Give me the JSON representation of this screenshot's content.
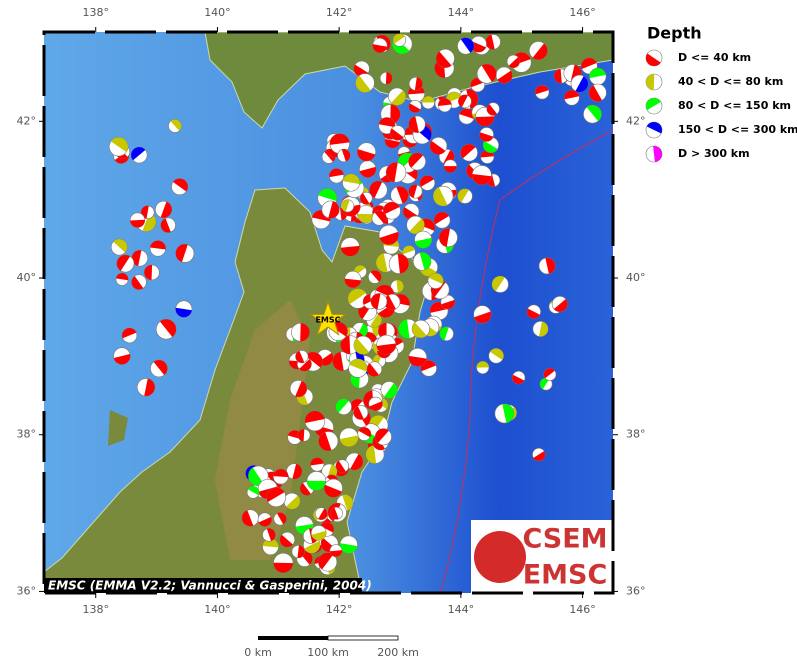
{
  "map": {
    "xlim": [
      137.15,
      146.5
    ],
    "ylim": [
      35.98,
      43.14
    ],
    "xticks": [
      {
        "value": 138,
        "label": "138°"
      },
      {
        "value": 140,
        "label": "140°"
      },
      {
        "value": 142,
        "label": "142°"
      },
      {
        "value": 144,
        "label": "144°"
      },
      {
        "value": 146,
        "label": "146°"
      }
    ],
    "yticks": [
      {
        "value": 36,
        "label": "36°"
      },
      {
        "value": 38,
        "label": "38°"
      },
      {
        "value": 40,
        "label": "40°"
      },
      {
        "value": 42,
        "label": "42°"
      }
    ]
  },
  "legend": {
    "title": "Depth",
    "items": [
      {
        "label": "D <= 40 km",
        "color": "#ff0000"
      },
      {
        "label": "40 < D <= 80 km",
        "color": "#c8c800"
      },
      {
        "label": "80 < D <= 150 km",
        "color": "#00ff00"
      },
      {
        "label": "150 < D <= 300 km",
        "color": "#0000ff"
      },
      {
        "label": "D > 300 km",
        "color": "#ff00ff"
      }
    ]
  },
  "marker_label": "EMSC",
  "caption": "EMSC (EMMA V2.2; Vannucci & Gasperini, 2004)",
  "logo": {
    "top": "CSEM",
    "bottom": "EMSC"
  },
  "scale_bar": {
    "labels": [
      "0 km",
      "100 km",
      "200 km"
    ]
  }
}
